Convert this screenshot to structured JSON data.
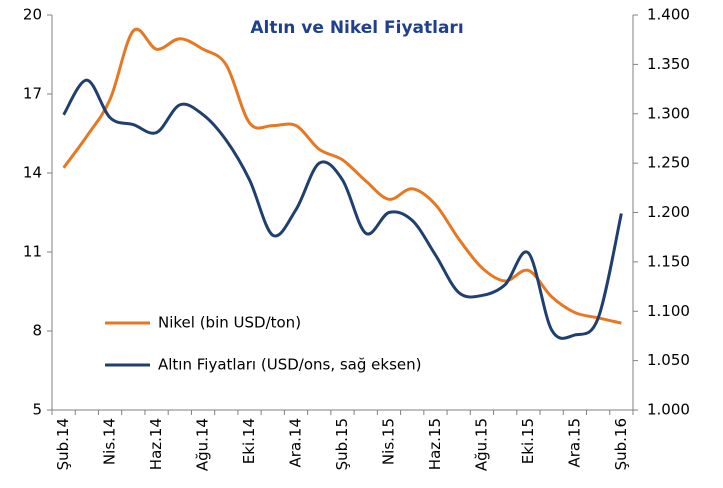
{
  "chart_data": {
    "type": "line",
    "title": "Altın ve Nikel Fiyatları",
    "categories": [
      "Şub.14",
      null,
      "Nis.14",
      null,
      "Haz.14",
      null,
      "Ağu.14",
      null,
      "Eki.14",
      null,
      "Ara.14",
      null,
      "Şub.15",
      null,
      "Nis.15",
      null,
      "Haz.15",
      null,
      "Ağu.15",
      null,
      "Eki.15",
      null,
      "Ara.15",
      null,
      "Şub.16"
    ],
    "series": [
      {
        "name": "Nikel (bin USD/ton)",
        "color": "#e87722",
        "values": [
          14.2,
          15.4,
          16.8,
          19.4,
          18.7,
          19.1,
          18.7,
          18.1,
          15.9,
          15.8,
          15.8,
          14.9,
          14.5,
          13.7,
          13.0,
          13.4,
          12.8,
          11.5,
          10.4,
          9.9,
          10.3,
          9.3,
          8.7,
          8.5,
          8.3
        ]
      },
      {
        "name": "Altın Fiyatları (USD/ons, sağ eksen)",
        "color": "#1f3f6e",
        "axis": "y2",
        "values": [
          1299,
          1334,
          1296,
          1289,
          1281,
          1309,
          1299,
          1273,
          1233,
          1177,
          1203,
          1250,
          1233,
          1179,
          1200,
          1192,
          1157,
          1119,
          1116,
          1127,
          1159,
          1081,
          1076,
          1093,
          1199
        ]
      }
    ],
    "ylim": [
      5,
      20
    ],
    "yticks": [
      5,
      8,
      11,
      14,
      17,
      20
    ],
    "y2lim": [
      1000,
      1400
    ],
    "y2ticks": [
      {
        "value": 1000,
        "label": "1.000"
      },
      {
        "value": 1050,
        "label": "1.050"
      },
      {
        "value": 1100,
        "label": "1.100"
      },
      {
        "value": 1150,
        "label": "1.150"
      },
      {
        "value": 1200,
        "label": "1.200"
      },
      {
        "value": 1250,
        "label": "1.250"
      },
      {
        "value": 1300,
        "label": "1.300"
      },
      {
        "value": 1350,
        "label": "1.350"
      },
      {
        "value": 1400,
        "label": "1.400"
      }
    ],
    "grid": false
  }
}
